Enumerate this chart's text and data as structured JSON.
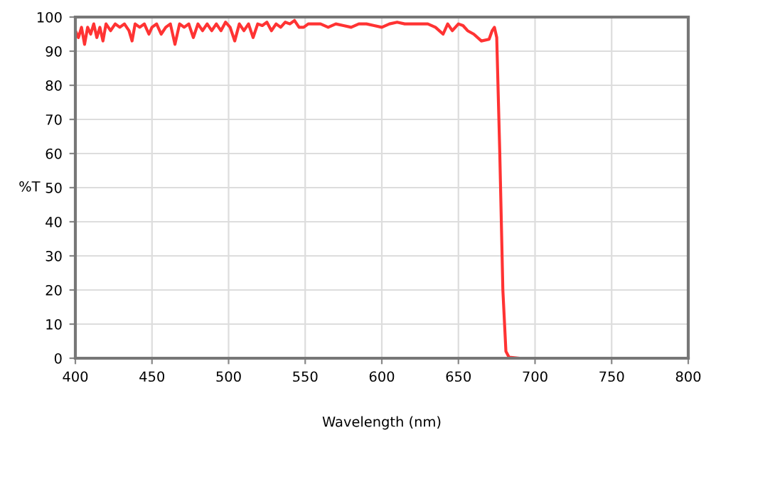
{
  "chart_data": {
    "type": "line",
    "xlabel": "Wavelength (nm)",
    "ylabel": "%T",
    "xlim": [
      400,
      800
    ],
    "xticks": [
      400,
      450,
      500,
      550,
      600,
      650,
      700,
      750,
      800
    ],
    "ylim": [
      0,
      100
    ],
    "yticks": [
      0,
      10,
      20,
      30,
      40,
      50,
      60,
      70,
      80,
      90,
      100
    ],
    "grid": true,
    "line_style": "solid",
    "marker": "none",
    "series": [
      {
        "color": "#ff3333",
        "x": [
          400,
          402,
          404,
          406,
          408,
          410,
          412,
          414,
          416,
          418,
          420,
          423,
          426,
          429,
          432,
          435,
          437,
          439,
          442,
          445,
          448,
          450,
          453,
          456,
          459,
          462,
          465,
          468,
          471,
          474,
          477,
          480,
          483,
          486,
          489,
          492,
          495,
          498,
          501,
          504,
          507,
          510,
          513,
          516,
          519,
          522,
          525,
          528,
          531,
          534,
          537,
          540,
          543,
          546,
          549,
          552,
          555,
          560,
          565,
          570,
          575,
          580,
          585,
          590,
          595,
          600,
          605,
          610,
          615,
          620,
          625,
          630,
          635,
          640,
          643,
          646,
          650,
          653,
          656,
          660,
          665,
          670,
          672,
          673.5,
          675,
          677,
          679,
          681,
          683,
          690,
          800
        ],
        "values": [
          96,
          94,
          97,
          92,
          97,
          95,
          98,
          94,
          97,
          93,
          98,
          96,
          98,
          97,
          98,
          96,
          93,
          98,
          97,
          98,
          95,
          97,
          98,
          95,
          97,
          98,
          92,
          98,
          97,
          98,
          94,
          98,
          96,
          98,
          96,
          98,
          96,
          98.5,
          97,
          93,
          98,
          96,
          98,
          94,
          98,
          97.5,
          98.5,
          96,
          98,
          97,
          98.5,
          98,
          99,
          97,
          97,
          98,
          98,
          98,
          97,
          98,
          97.5,
          97,
          98,
          98,
          97.5,
          97,
          98,
          98.5,
          98,
          98,
          98,
          98,
          97,
          95,
          98,
          96,
          98,
          97.5,
          96,
          95,
          93,
          93.5,
          96,
          97,
          94,
          60,
          20,
          2,
          0.3,
          0,
          0
        ]
      }
    ]
  }
}
